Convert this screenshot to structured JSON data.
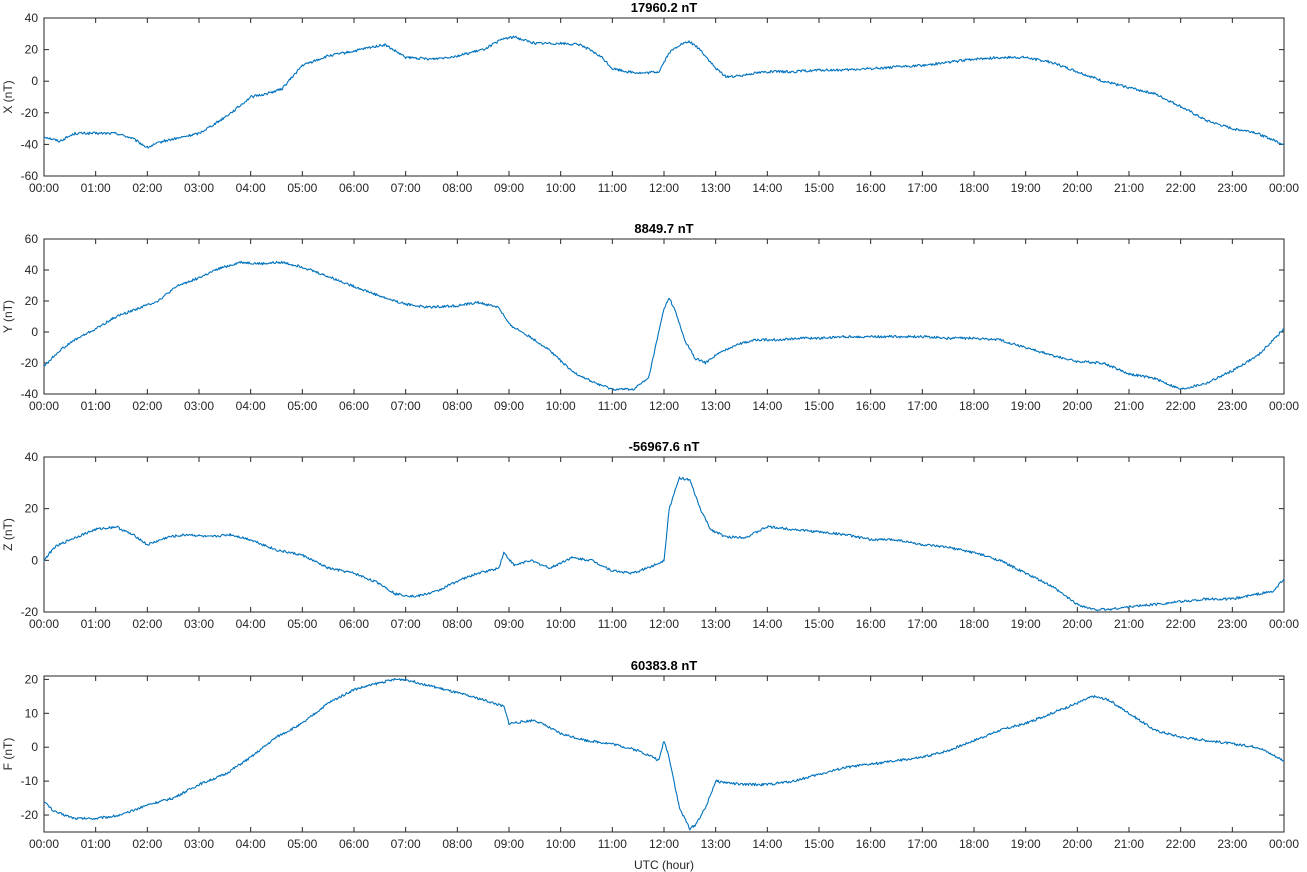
{
  "chart_data": [
    {
      "type": "line",
      "title": "17960.2 nT",
      "xlabel": "",
      "ylabel": "X (nT)",
      "ylim": [
        -60,
        40
      ],
      "yticks": [
        -60,
        -40,
        -20,
        0,
        20,
        40
      ],
      "xticks": [
        "00:00",
        "01:00",
        "02:00",
        "03:00",
        "04:00",
        "05:00",
        "06:00",
        "07:00",
        "08:00",
        "09:00",
        "10:00",
        "11:00",
        "12:00",
        "13:00",
        "14:00",
        "15:00",
        "16:00",
        "17:00",
        "18:00",
        "19:00",
        "20:00",
        "21:00",
        "22:00",
        "23:00",
        "00:00"
      ],
      "color": "#0072BD",
      "x": [
        0,
        0.3,
        0.6,
        1.0,
        1.4,
        1.7,
        2.0,
        2.3,
        2.6,
        3.0,
        3.4,
        3.7,
        4.0,
        4.3,
        4.6,
        5.0,
        5.5,
        6.0,
        6.4,
        6.6,
        7.0,
        7.5,
        8.0,
        8.5,
        8.9,
        9.1,
        9.5,
        10.0,
        10.4,
        10.8,
        11.0,
        11.3,
        11.6,
        11.9,
        12.1,
        12.3,
        12.5,
        12.7,
        13.0,
        13.2,
        13.4,
        13.7,
        14.0,
        14.5,
        15.0,
        15.5,
        16.0,
        16.5,
        17.0,
        17.5,
        18.0,
        18.5,
        19.0,
        19.5,
        20.0,
        20.5,
        21.0,
        21.5,
        22.0,
        22.5,
        23.0,
        23.4,
        23.7,
        24.0
      ],
      "series": [
        {
          "values": [
            -35,
            -38,
            -33,
            -33,
            -33,
            -36,
            -42,
            -38,
            -36,
            -33,
            -25,
            -18,
            -10,
            -8,
            -5,
            10,
            16,
            19,
            22,
            23,
            15,
            14,
            16,
            20,
            27,
            28,
            24,
            24,
            23,
            15,
            8,
            6,
            5,
            6,
            18,
            23,
            25,
            20,
            8,
            3,
            3,
            5,
            6,
            6,
            7,
            7,
            8,
            9,
            10,
            12,
            14,
            15,
            15,
            12,
            6,
            0,
            -4,
            -8,
            -16,
            -25,
            -30,
            -32,
            -36,
            -40
          ]
        }
      ]
    },
    {
      "type": "line",
      "title": "8849.7 nT",
      "xlabel": "",
      "ylabel": "Y (nT)",
      "ylim": [
        -40,
        60
      ],
      "yticks": [
        -40,
        -20,
        0,
        20,
        40,
        60
      ],
      "xticks": [
        "00:00",
        "01:00",
        "02:00",
        "03:00",
        "04:00",
        "05:00",
        "06:00",
        "07:00",
        "08:00",
        "09:00",
        "10:00",
        "11:00",
        "12:00",
        "13:00",
        "14:00",
        "15:00",
        "16:00",
        "17:00",
        "18:00",
        "19:00",
        "20:00",
        "21:00",
        "22:00",
        "23:00",
        "00:00"
      ],
      "color": "#0072BD",
      "x": [
        0,
        0.3,
        0.6,
        1.0,
        1.4,
        1.8,
        2.2,
        2.6,
        3.0,
        3.4,
        3.8,
        4.2,
        4.6,
        5.0,
        5.4,
        5.8,
        6.2,
        6.6,
        7.0,
        7.4,
        8.0,
        8.4,
        8.8,
        9.0,
        9.4,
        9.8,
        10.2,
        10.6,
        11.0,
        11.4,
        11.7,
        11.9,
        12.0,
        12.1,
        12.2,
        12.4,
        12.6,
        12.8,
        13.0,
        13.4,
        13.8,
        14.2,
        14.6,
        15.0,
        15.5,
        16.0,
        16.5,
        17.0,
        17.5,
        18.0,
        18.5,
        19.0,
        19.5,
        20.0,
        20.5,
        21.0,
        21.5,
        22.0,
        22.5,
        23.0,
        23.5,
        24.0
      ],
      "series": [
        {
          "values": [
            -22,
            -12,
            -5,
            2,
            10,
            15,
            20,
            30,
            35,
            41,
            45,
            44,
            45,
            42,
            37,
            32,
            27,
            22,
            18,
            16,
            17,
            19,
            16,
            5,
            -3,
            -12,
            -25,
            -32,
            -37,
            -37,
            -30,
            0,
            15,
            22,
            15,
            -5,
            -17,
            -20,
            -15,
            -8,
            -5,
            -5,
            -4,
            -4,
            -3,
            -3,
            -3,
            -3,
            -4,
            -4,
            -5,
            -10,
            -15,
            -19,
            -20,
            -27,
            -30,
            -37,
            -33,
            -25,
            -15,
            2
          ]
        }
      ]
    },
    {
      "type": "line",
      "title": "-56967.6 nT",
      "xlabel": "",
      "ylabel": "Z (nT)",
      "ylim": [
        -20,
        40
      ],
      "yticks": [
        -20,
        0,
        20,
        40
      ],
      "xticks": [
        "00:00",
        "01:00",
        "02:00",
        "03:00",
        "04:00",
        "05:00",
        "06:00",
        "07:00",
        "08:00",
        "09:00",
        "10:00",
        "11:00",
        "12:00",
        "13:00",
        "14:00",
        "15:00",
        "16:00",
        "17:00",
        "18:00",
        "19:00",
        "20:00",
        "21:00",
        "22:00",
        "23:00",
        "00:00"
      ],
      "color": "#0072BD",
      "x": [
        0,
        0.2,
        0.5,
        1.0,
        1.4,
        1.8,
        2.0,
        2.4,
        2.8,
        3.2,
        3.6,
        4.0,
        4.5,
        5.0,
        5.5,
        6.0,
        6.5,
        6.8,
        7.2,
        7.6,
        8.0,
        8.4,
        8.8,
        8.9,
        9.1,
        9.4,
        9.8,
        10.2,
        10.6,
        11.0,
        11.4,
        11.8,
        12.0,
        12.1,
        12.3,
        12.5,
        12.7,
        12.9,
        13.2,
        13.6,
        14.0,
        14.5,
        15.0,
        15.5,
        16.0,
        16.5,
        17.0,
        17.5,
        18.0,
        18.5,
        19.0,
        19.5,
        20.0,
        20.3,
        20.6,
        21.0,
        21.5,
        22.0,
        22.5,
        23.0,
        23.5,
        23.8,
        24.0
      ],
      "series": [
        {
          "values": [
            0,
            5,
            8,
            12,
            13,
            9,
            6,
            9,
            10,
            9,
            10,
            8,
            4,
            2,
            -3,
            -5,
            -9,
            -13,
            -14,
            -12,
            -8,
            -5,
            -3,
            3,
            -2,
            0,
            -3,
            1,
            0,
            -4,
            -5,
            -2,
            0,
            20,
            32,
            31,
            20,
            12,
            9,
            9,
            13,
            12,
            11,
            10,
            8,
            8,
            6,
            5,
            3,
            0,
            -5,
            -10,
            -17,
            -19,
            -19,
            -18,
            -17,
            -16,
            -15,
            -15,
            -13,
            -12,
            -7
          ]
        }
      ]
    },
    {
      "type": "line",
      "title": "60383.8 nT",
      "xlabel": "UTC (hour)",
      "ylabel": "F (nT)",
      "ylim": [
        -25,
        21
      ],
      "yticks": [
        -20,
        -10,
        0,
        10,
        20
      ],
      "xticks": [
        "00:00",
        "01:00",
        "02:00",
        "03:00",
        "04:00",
        "05:00",
        "06:00",
        "07:00",
        "08:00",
        "09:00",
        "10:00",
        "11:00",
        "12:00",
        "13:00",
        "14:00",
        "15:00",
        "16:00",
        "17:00",
        "18:00",
        "19:00",
        "20:00",
        "21:00",
        "22:00",
        "23:00",
        "00:00"
      ],
      "color": "#0072BD",
      "x": [
        0,
        0.2,
        0.6,
        1.0,
        1.5,
        2.0,
        2.5,
        3.0,
        3.5,
        4.0,
        4.5,
        5.0,
        5.5,
        6.0,
        6.5,
        6.8,
        7.0,
        7.5,
        8.0,
        8.5,
        8.9,
        9.0,
        9.5,
        10.0,
        10.5,
        11.0,
        11.5,
        11.8,
        11.9,
        12.0,
        12.1,
        12.3,
        12.5,
        12.6,
        12.8,
        13.0,
        13.5,
        14.0,
        14.5,
        15.0,
        15.5,
        16.0,
        16.5,
        17.0,
        17.5,
        18.0,
        18.5,
        19.0,
        19.5,
        20.0,
        20.3,
        20.6,
        21.0,
        21.5,
        22.0,
        22.5,
        23.0,
        23.5,
        24.0
      ],
      "series": [
        {
          "values": [
            -16,
            -19,
            -21,
            -21,
            -20,
            -17,
            -15,
            -11,
            -8,
            -3,
            3,
            7,
            13,
            17,
            19,
            20,
            20,
            18,
            16,
            14,
            12,
            7,
            8,
            4,
            2,
            1,
            -1,
            -3,
            -4,
            2,
            -3,
            -18,
            -24,
            -23,
            -18,
            -10,
            -11,
            -11,
            -10,
            -8,
            -6,
            -5,
            -4,
            -3,
            -1,
            2,
            5,
            7,
            10,
            13,
            15,
            14,
            10,
            5,
            3,
            2,
            1,
            0,
            -4
          ]
        }
      ]
    }
  ]
}
